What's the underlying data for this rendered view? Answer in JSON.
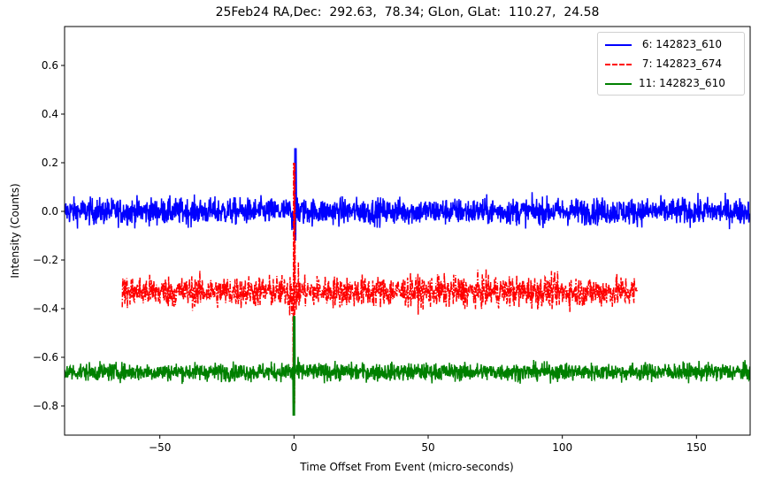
{
  "chart_data": {
    "type": "line",
    "title": "25Feb24 RA,Dec:  292.63,  78.34; GLon, GLat:  110.27,  24.58",
    "xlabel": "Time Offset From Event (micro-seconds)",
    "ylabel": "Intensity (Counts)",
    "xlim": [
      -85.5,
      170
    ],
    "ylim": [
      -0.92,
      0.76
    ],
    "xticks": [
      -50,
      0,
      50,
      100,
      150
    ],
    "xtick_labels": [
      "−50",
      "0",
      "50",
      "100",
      "150"
    ],
    "yticks": [
      0.6,
      0.4,
      0.2,
      0.0,
      -0.2,
      -0.4,
      -0.6,
      -0.8
    ],
    "ytick_labels": [
      "0.6",
      "0.4",
      "0.2",
      "0.0",
      "−0.2",
      "−0.4",
      "−0.6",
      "−0.8"
    ],
    "grid": false,
    "legend_position": "upper right",
    "series": [
      {
        "name": "6: 142823_610",
        "label": " 6: 142823_610",
        "color": "#0000ff",
        "style": "solid",
        "x_range": [
          -85.5,
          170
        ],
        "baseline": 0.0,
        "noise_amplitude": 0.06,
        "peak": {
          "x": 0.5,
          "max": 0.26,
          "min": -0.12
        }
      },
      {
        "name": "7: 142823_674",
        "label": " 7: 142823_674",
        "color": "#ff0000",
        "style": "dashdot",
        "x_range": [
          -64,
          128
        ],
        "baseline": -0.33,
        "noise_amplitude": 0.07,
        "peak": {
          "x": 0,
          "max": 0.2,
          "min": -0.79
        }
      },
      {
        "name": "11: 142823_610",
        "label": "11: 142823_610",
        "color": "#008000",
        "style": "solid",
        "x_range": [
          -85.5,
          170
        ],
        "baseline": -0.66,
        "noise_amplitude": 0.04,
        "peak": {
          "x": 0,
          "max": -0.43,
          "min": -0.84
        }
      }
    ]
  }
}
